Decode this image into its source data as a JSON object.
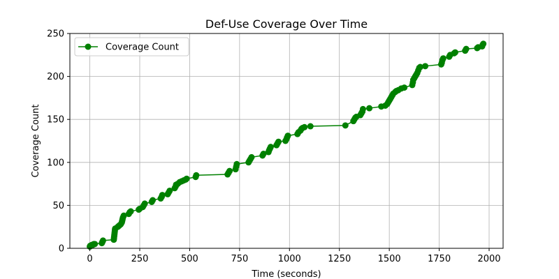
{
  "chart_data": {
    "type": "line",
    "title": "Def-Use Coverage Over Time",
    "xlabel": "Time (seconds)",
    "ylabel": "Coverage Count",
    "xlim": [
      -100,
      2070
    ],
    "ylim": [
      0,
      250
    ],
    "xticks": [
      0,
      250,
      500,
      750,
      1000,
      1250,
      1500,
      1750,
      2000
    ],
    "yticks": [
      0,
      50,
      100,
      150,
      200,
      250
    ],
    "grid": true,
    "legend_position": "top-left",
    "series": [
      {
        "name": "Coverage Count",
        "color": "#008000",
        "marker": "circle",
        "points": [
          [
            0,
            2
          ],
          [
            2,
            3
          ],
          [
            5,
            3
          ],
          [
            10,
            4
          ],
          [
            15,
            4
          ],
          [
            20,
            5
          ],
          [
            25,
            5
          ],
          [
            60,
            6
          ],
          [
            62,
            7
          ],
          [
            64,
            8
          ],
          [
            66,
            9
          ],
          [
            120,
            10
          ],
          [
            121,
            12
          ],
          [
            122,
            14
          ],
          [
            123,
            16
          ],
          [
            124,
            18
          ],
          [
            125,
            20
          ],
          [
            126,
            22
          ],
          [
            127,
            23
          ],
          [
            140,
            25
          ],
          [
            145,
            26
          ],
          [
            150,
            27
          ],
          [
            155,
            28
          ],
          [
            160,
            30
          ],
          [
            162,
            32
          ],
          [
            164,
            34
          ],
          [
            166,
            36
          ],
          [
            170,
            38
          ],
          [
            195,
            40
          ],
          [
            200,
            42
          ],
          [
            205,
            43
          ],
          [
            245,
            45
          ],
          [
            250,
            46
          ],
          [
            265,
            48
          ],
          [
            270,
            50
          ],
          [
            275,
            52
          ],
          [
            310,
            54
          ],
          [
            315,
            56
          ],
          [
            355,
            58
          ],
          [
            360,
            60
          ],
          [
            363,
            62
          ],
          [
            390,
            63
          ],
          [
            395,
            65
          ],
          [
            400,
            67
          ],
          [
            425,
            70
          ],
          [
            430,
            72
          ],
          [
            432,
            74
          ],
          [
            440,
            75
          ],
          [
            450,
            77
          ],
          [
            460,
            78
          ],
          [
            470,
            79
          ],
          [
            480,
            80
          ],
          [
            485,
            81
          ],
          [
            530,
            83
          ],
          [
            533,
            85
          ],
          [
            690,
            86
          ],
          [
            695,
            88
          ],
          [
            700,
            90
          ],
          [
            730,
            92
          ],
          [
            733,
            95
          ],
          [
            736,
            98
          ],
          [
            795,
            100
          ],
          [
            800,
            102
          ],
          [
            805,
            104
          ],
          [
            810,
            106
          ],
          [
            865,
            108
          ],
          [
            870,
            110
          ],
          [
            895,
            112
          ],
          [
            898,
            114
          ],
          [
            902,
            116
          ],
          [
            906,
            118
          ],
          [
            935,
            120
          ],
          [
            940,
            122
          ],
          [
            945,
            124
          ],
          [
            980,
            125
          ],
          [
            985,
            127
          ],
          [
            988,
            129
          ],
          [
            992,
            131
          ],
          [
            1040,
            133
          ],
          [
            1045,
            135
          ],
          [
            1055,
            137
          ],
          [
            1060,
            139
          ],
          [
            1065,
            140
          ],
          [
            1075,
            141
          ],
          [
            1105,
            142
          ],
          [
            1280,
            143
          ],
          [
            1320,
            148
          ],
          [
            1325,
            150
          ],
          [
            1330,
            152
          ],
          [
            1335,
            153
          ],
          [
            1355,
            155
          ],
          [
            1360,
            157
          ],
          [
            1365,
            159
          ],
          [
            1368,
            162
          ],
          [
            1400,
            163
          ],
          [
            1460,
            165
          ],
          [
            1480,
            166
          ],
          [
            1490,
            168
          ],
          [
            1495,
            170
          ],
          [
            1500,
            172
          ],
          [
            1505,
            174
          ],
          [
            1510,
            176
          ],
          [
            1515,
            178
          ],
          [
            1520,
            180
          ],
          [
            1530,
            182
          ],
          [
            1535,
            183
          ],
          [
            1545,
            184
          ],
          [
            1560,
            186
          ],
          [
            1575,
            187
          ],
          [
            1615,
            190
          ],
          [
            1618,
            193
          ],
          [
            1620,
            196
          ],
          [
            1625,
            198
          ],
          [
            1630,
            200
          ],
          [
            1635,
            202
          ],
          [
            1640,
            204
          ],
          [
            1645,
            207
          ],
          [
            1650,
            210
          ],
          [
            1655,
            211
          ],
          [
            1680,
            212
          ],
          [
            1760,
            214
          ],
          [
            1763,
            216
          ],
          [
            1766,
            219
          ],
          [
            1770,
            221
          ],
          [
            1800,
            223
          ],
          [
            1805,
            225
          ],
          [
            1825,
            227
          ],
          [
            1830,
            228
          ],
          [
            1880,
            230
          ],
          [
            1885,
            232
          ],
          [
            1940,
            233
          ],
          [
            1945,
            234
          ],
          [
            1965,
            235
          ],
          [
            1968,
            237
          ],
          [
            1971,
            238
          ]
        ]
      }
    ]
  }
}
